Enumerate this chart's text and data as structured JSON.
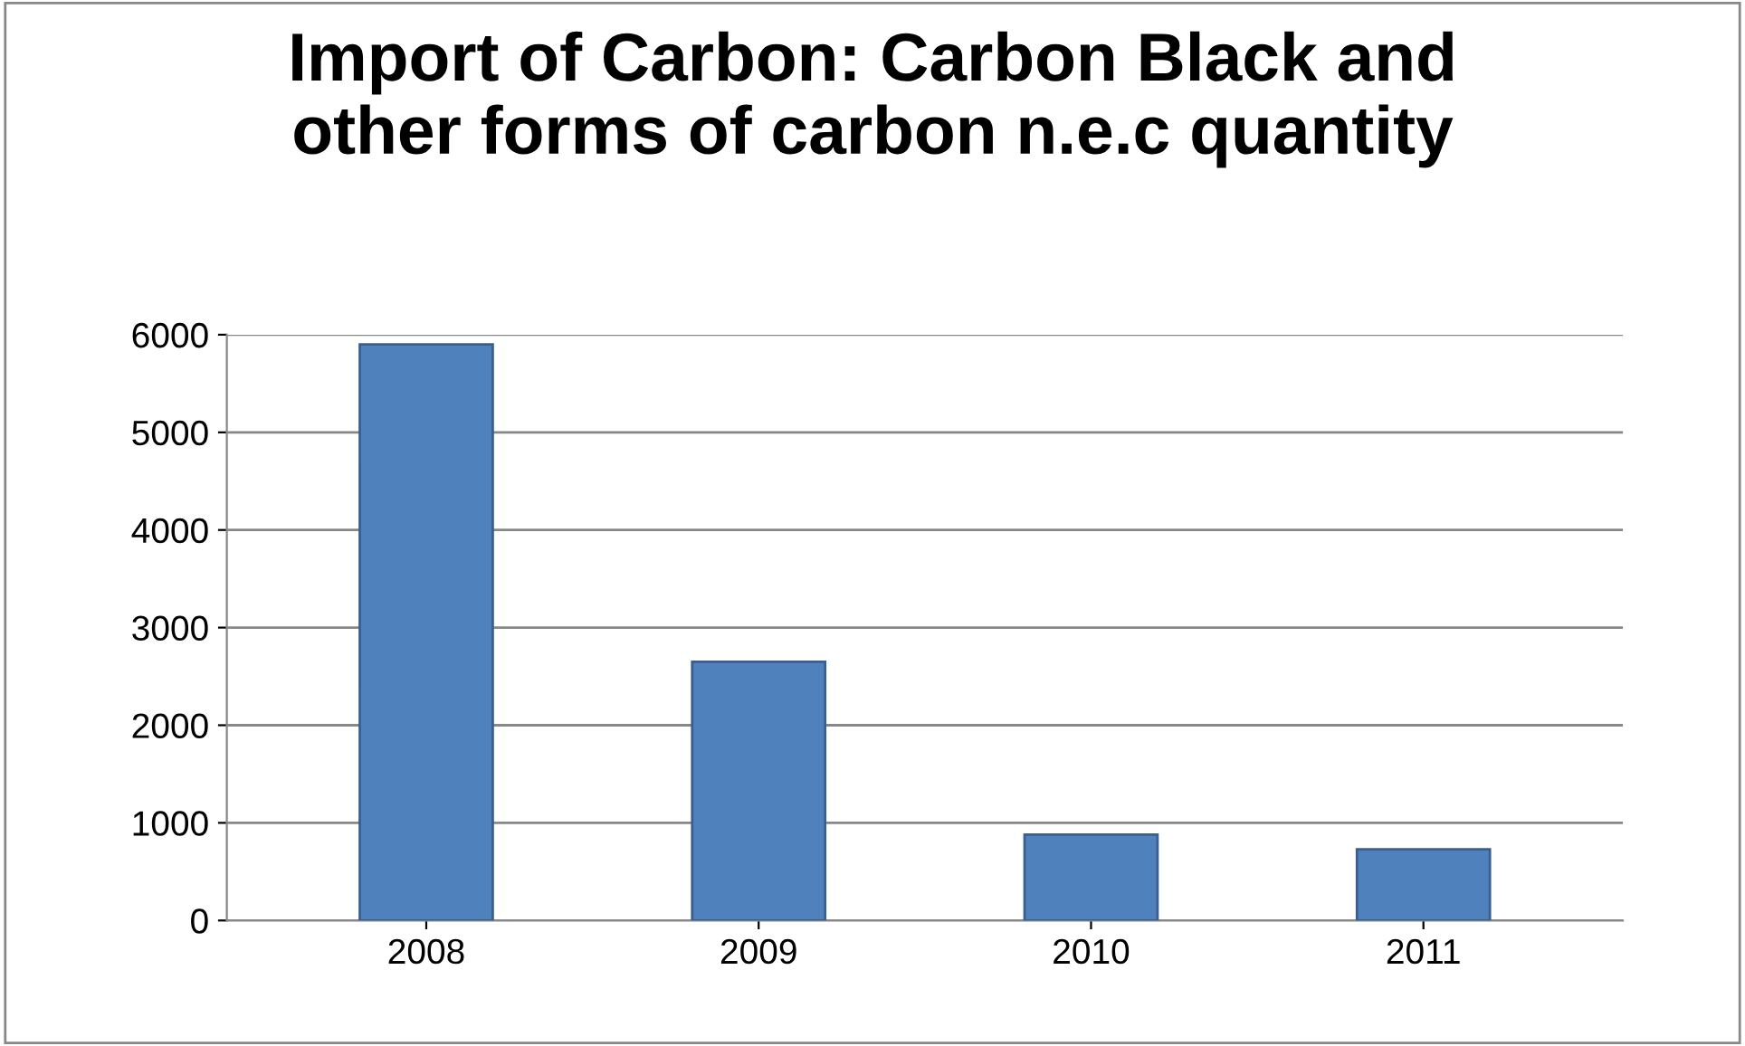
{
  "chart_data": {
    "type": "bar",
    "title": "Import of Carbon: Carbon Black and\nother forms of carbon n.e.c quantity",
    "categories": [
      "2008",
      "2009",
      "2010",
      "2011"
    ],
    "values": [
      5900,
      2650,
      880,
      730
    ],
    "color": "#4f81bd",
    "ylim": [
      0,
      6000
    ],
    "yticks": [
      0,
      1000,
      2000,
      3000,
      4000,
      5000,
      6000
    ],
    "grid": "y",
    "legend": false
  }
}
